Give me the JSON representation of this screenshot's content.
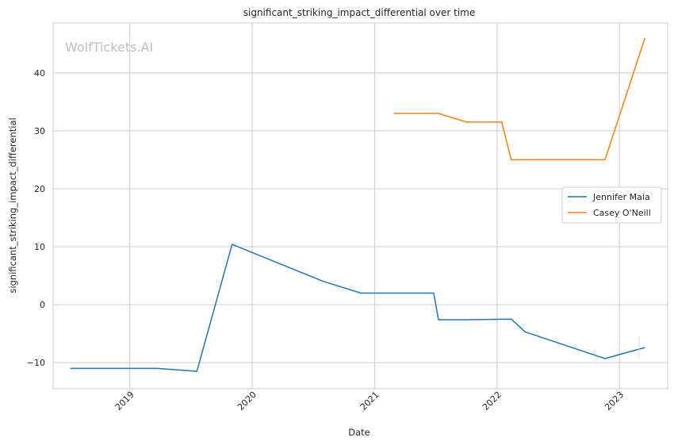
{
  "chart_data": {
    "type": "line",
    "title": "significant_striking_impact_differential over time",
    "xlabel": "Date",
    "ylabel": "significant_striking_impact_differential",
    "watermark": "WolfTickets.AI",
    "x_ticks": [
      "2019",
      "2020",
      "2021",
      "2022",
      "2023"
    ],
    "y_ticks": [
      -10,
      0,
      10,
      20,
      30,
      40
    ],
    "xlim": [
      "2018-05-17",
      "2023-05-25"
    ],
    "ylim": [
      -14.5,
      48.6
    ],
    "grid": true,
    "legend_position": "center-right",
    "series": [
      {
        "name": "Jennifer Maia",
        "color": "#1f77b4",
        "points": [
          {
            "x": "2018-07-07",
            "y": -11.0
          },
          {
            "x": "2019-03-23",
            "y": -11.0
          },
          {
            "x": "2019-07-20",
            "y": -11.5
          },
          {
            "x": "2019-11-02",
            "y": 10.4
          },
          {
            "x": "2020-08-01",
            "y": 4.0
          },
          {
            "x": "2020-11-21",
            "y": 2.0
          },
          {
            "x": "2021-06-26",
            "y": 2.0
          },
          {
            "x": "2021-07-10",
            "y": -2.6
          },
          {
            "x": "2021-10-02",
            "y": -2.6
          },
          {
            "x": "2022-02-12",
            "y": -2.5
          },
          {
            "x": "2022-03-26",
            "y": -4.7
          },
          {
            "x": "2022-11-19",
            "y": -9.3
          },
          {
            "x": "2023-03-18",
            "y": -7.4
          }
        ]
      },
      {
        "name": "Casey O'Neill",
        "color": "#ff7f0e",
        "points": [
          {
            "x": "2021-02-27",
            "y": 33.0
          },
          {
            "x": "2021-07-10",
            "y": 33.0
          },
          {
            "x": "2021-10-02",
            "y": 31.5
          },
          {
            "x": "2022-01-15",
            "y": 31.5
          },
          {
            "x": "2022-02-12",
            "y": 25.0
          },
          {
            "x": "2022-11-19",
            "y": 25.0
          },
          {
            "x": "2023-03-18",
            "y": 46.0
          }
        ]
      }
    ]
  }
}
